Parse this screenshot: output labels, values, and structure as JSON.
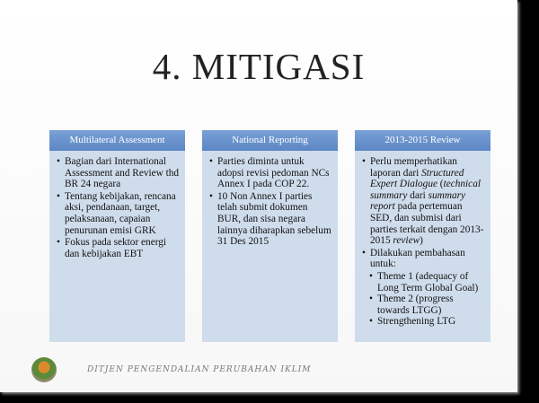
{
  "title": "4. MITIGASI",
  "columns": [
    {
      "header": "Multilateral Assessment",
      "bullets": [
        {
          "level": 1,
          "segments": [
            {
              "t": "Bagian dari International Assessment and Review thd BR 24 negara"
            }
          ]
        },
        {
          "level": 1,
          "segments": [
            {
              "t": "Tentang kebijakan, rencana aksi, pendanaan, target, pelaksanaan, capaian penurunan emisi GRK"
            }
          ]
        },
        {
          "level": 1,
          "segments": [
            {
              "t": "Fokus pada sektor energi dan kebijakan EBT"
            }
          ]
        }
      ]
    },
    {
      "header": "National Reporting",
      "bullets": [
        {
          "level": 1,
          "segments": [
            {
              "t": "Parties diminta untuk adopsi revisi pedoman NCs Annex I pada COP 22."
            }
          ]
        },
        {
          "level": 1,
          "segments": [
            {
              "t": "10 Non Annex I parties telah submit dokumen BUR, dan sisa negara lainnya diharapkan sebelum 31 Des 2015"
            }
          ]
        }
      ]
    },
    {
      "header": "2013-2015 Review",
      "bullets": [
        {
          "level": 1,
          "segments": [
            {
              "t": "Perlu memperhatikan laporan dari "
            },
            {
              "t": "Structured Expert Dialogue",
              "i": true
            },
            {
              "t": " ("
            },
            {
              "t": "technical summary",
              "i": true
            },
            {
              "t": " dari "
            },
            {
              "t": "summary report",
              "i": true
            },
            {
              "t": " pada pertemuan SED, dan submisi dari parties terkait dengan 2013-2015 "
            },
            {
              "t": "review",
              "i": true
            },
            {
              "t": ")"
            }
          ]
        },
        {
          "level": 1,
          "segments": [
            {
              "t": "Dilakukan pembahasan untuk:"
            }
          ]
        },
        {
          "level": 2,
          "segments": [
            {
              "t": "Theme 1 (adequacy of Long Term Global Goal)"
            }
          ]
        },
        {
          "level": 2,
          "segments": [
            {
              "t": "Theme 2 (progress towards LTGG)"
            }
          ]
        },
        {
          "level": 2,
          "segments": [
            {
              "t": "Strengthening LTG"
            }
          ]
        }
      ]
    }
  ],
  "footer": "DITJEN PENGENDALIAN PERUBAHAN IKLIM",
  "colors": {
    "header": "#5b86c4",
    "box": "#cfdcec"
  }
}
